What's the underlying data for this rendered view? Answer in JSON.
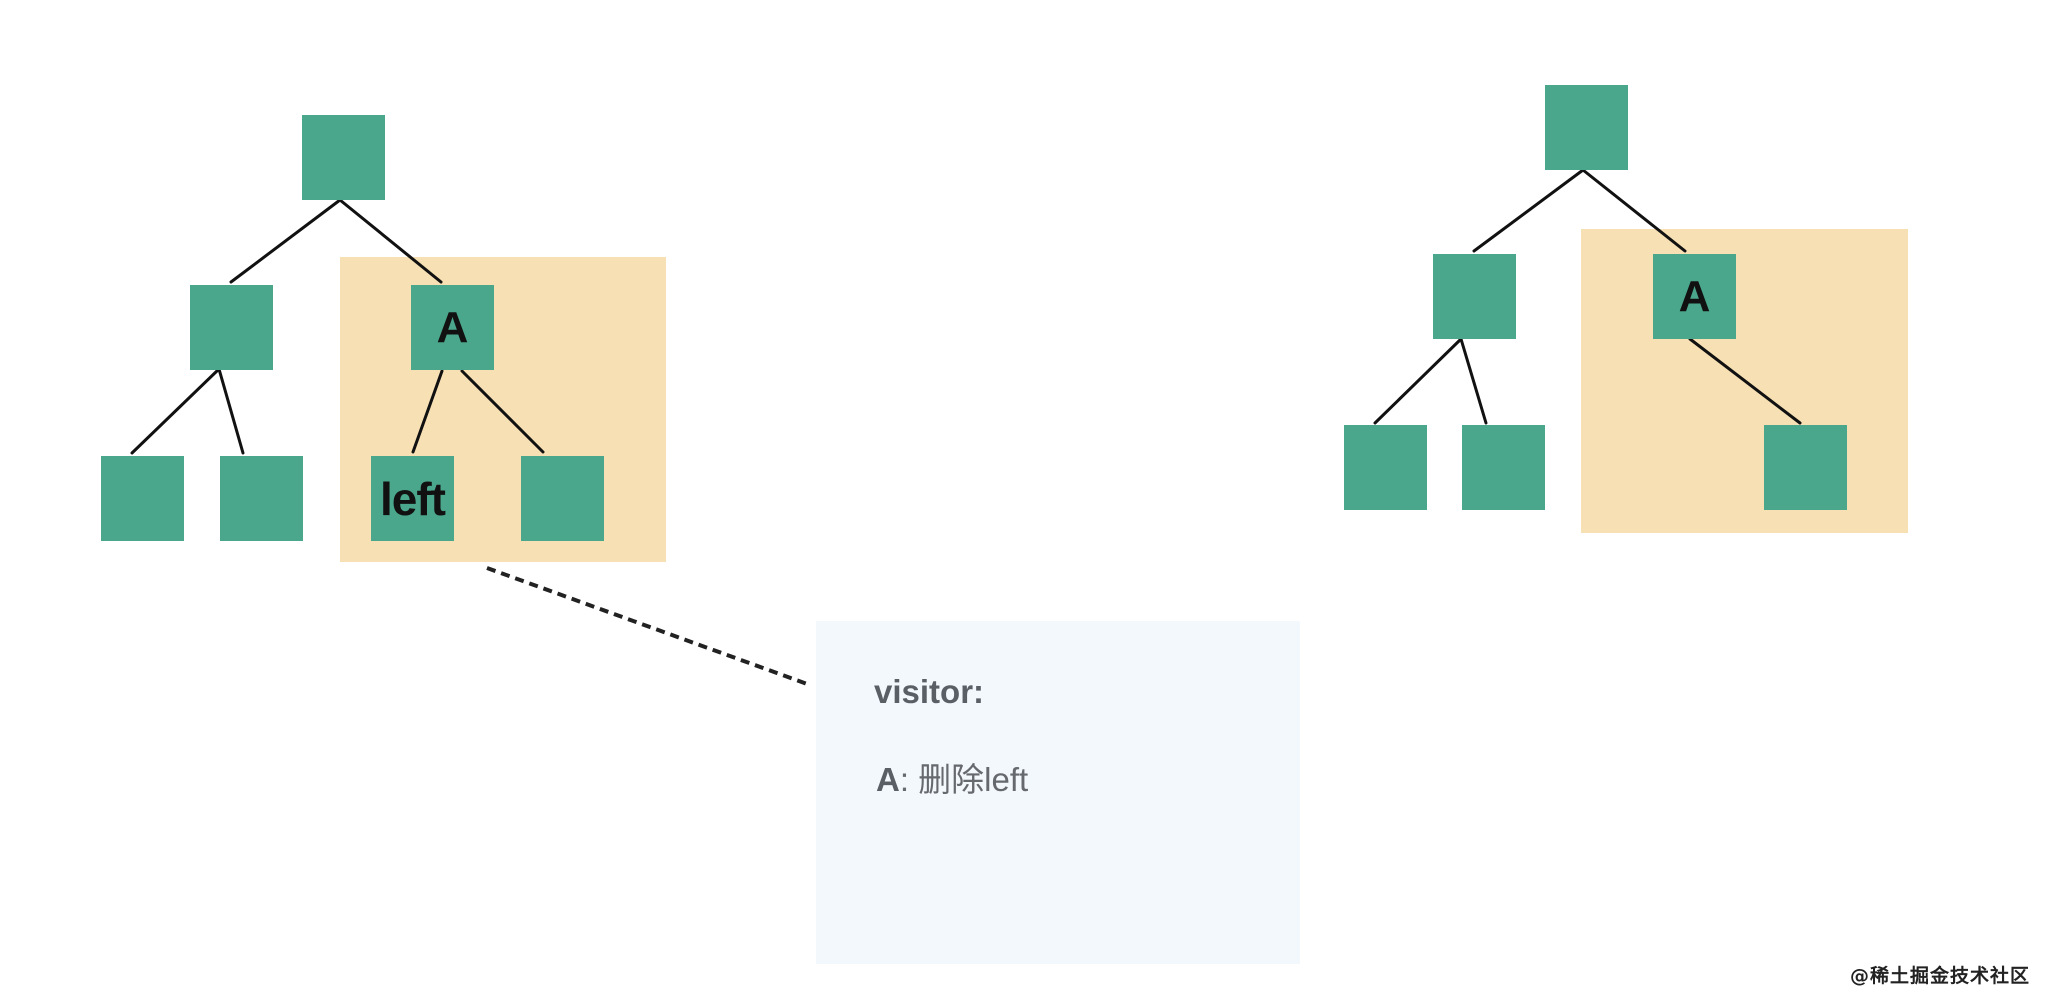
{
  "left_tree": {
    "node_a_label": "A",
    "node_left_label": "left"
  },
  "right_tree": {
    "node_a_label": "A"
  },
  "note": {
    "title": "visitor:",
    "line_key": "A",
    "line_text": ": 删除left"
  },
  "watermark": "@稀土掘金技术社区",
  "colors": {
    "node": "#4aa78b",
    "highlight": "#f7e0b4",
    "note_background": "#f3f8fd",
    "edge": "#111111"
  }
}
